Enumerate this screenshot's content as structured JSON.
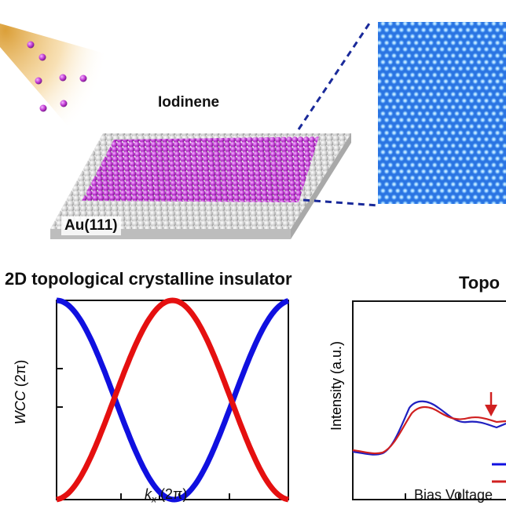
{
  "labels": {
    "iodinene": "Iodinene",
    "substrate": "Au(111)",
    "tci_title": "2D topological crystalline insulator",
    "topo_title": "Topo"
  },
  "wcc_plot": {
    "ylabel_main": "WCC",
    "ylabel_unit": " (2π)",
    "xlabel_main": "k",
    "xlabel_sub": "x",
    "xlabel_unit": " (2π)"
  },
  "spectra_plot": {
    "ylabel": "Intensity (a.u.)",
    "xlabel": "Bias Voltage"
  },
  "colors": {
    "iodine": "#c23bd4",
    "gold_atom": "#c9c9c9",
    "stm_blue": "#2b78e6",
    "band_blue": "#1010e0",
    "band_red": "#e51010",
    "callout_line": "#1a2a9a"
  }
}
